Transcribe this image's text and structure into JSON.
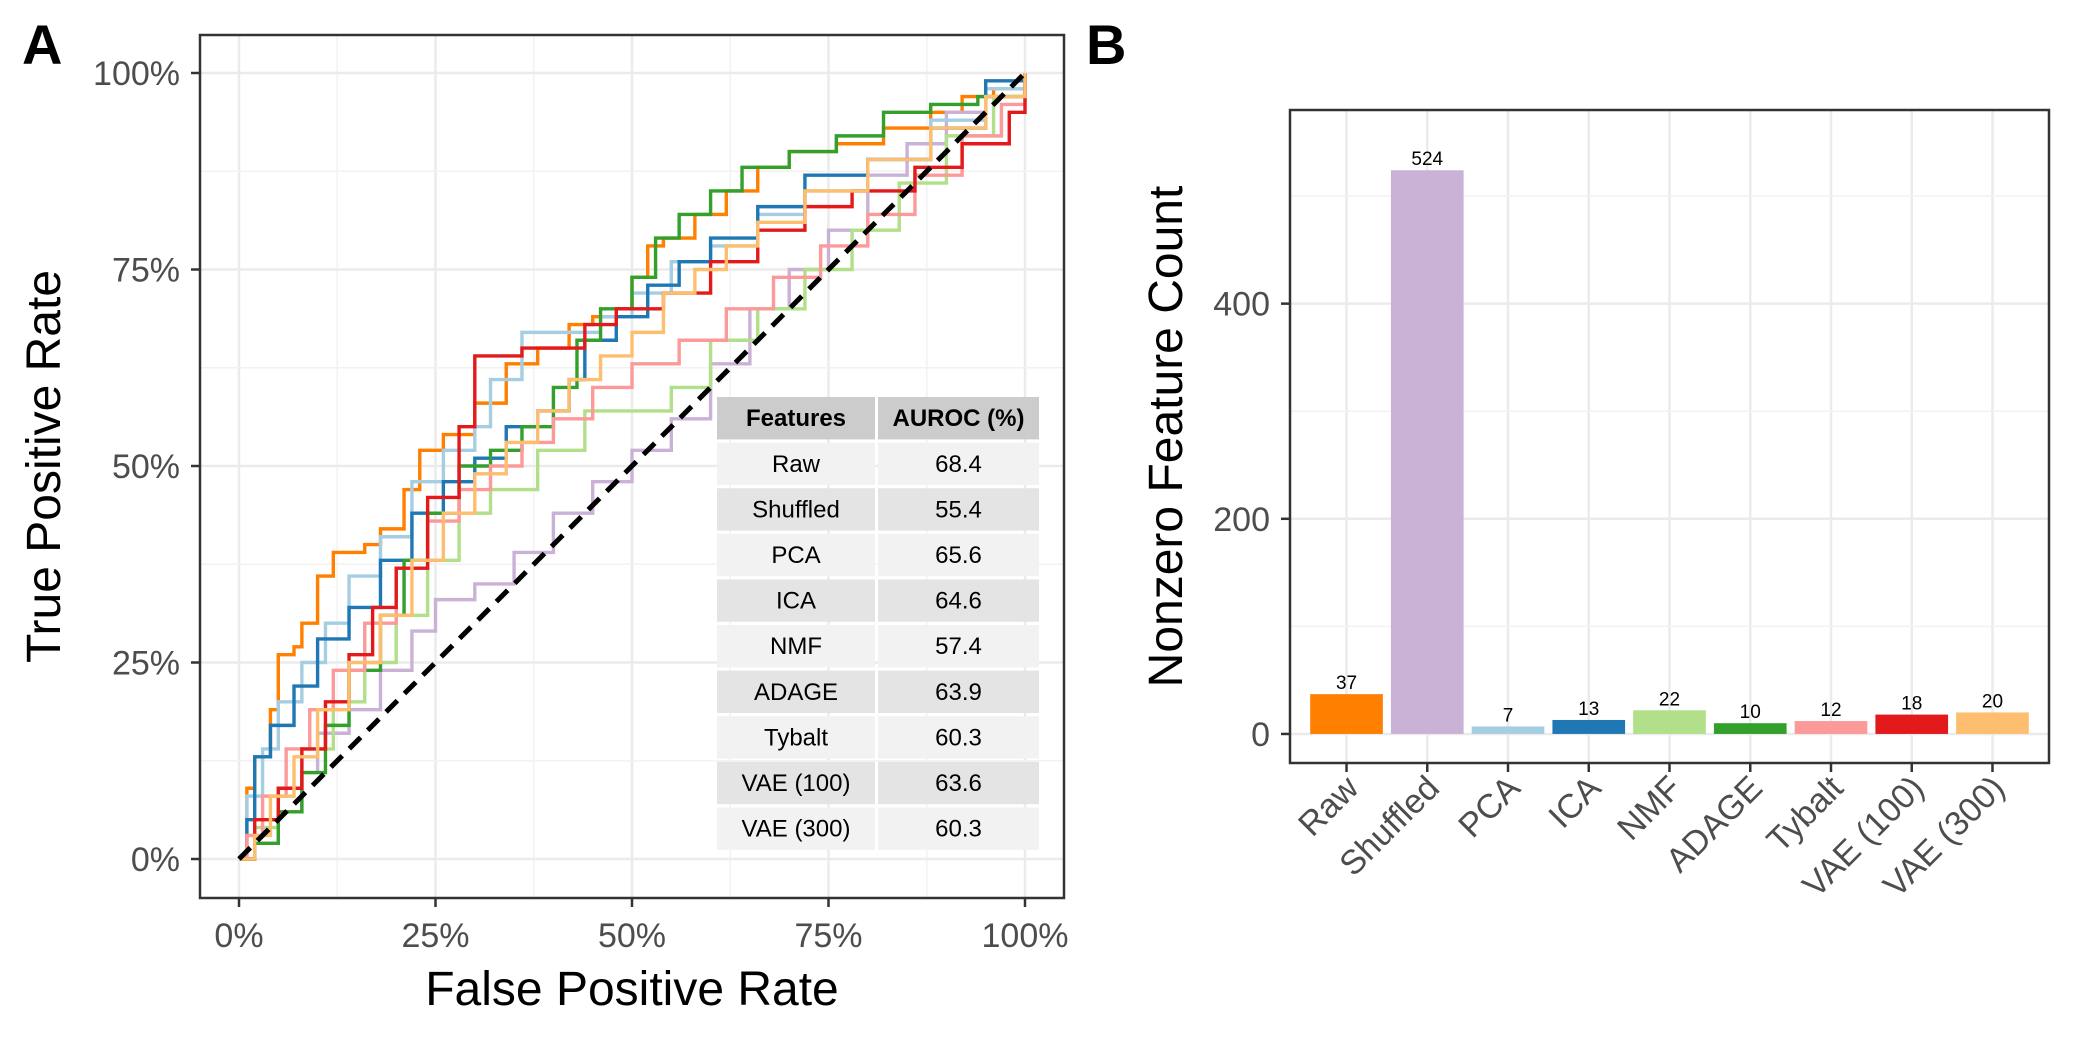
{
  "panels": {
    "a": "A",
    "b": "B"
  },
  "chart_data": [
    {
      "type": "line",
      "panel": "A",
      "xlabel": "False Positive Rate",
      "ylabel": "True Positive Rate",
      "xlim": [
        0,
        1
      ],
      "ylim": [
        0,
        1
      ],
      "x_ticks": [
        "0%",
        "25%",
        "50%",
        "75%",
        "100%"
      ],
      "y_ticks": [
        "0%",
        "25%",
        "50%",
        "75%",
        "100%"
      ],
      "grid": true,
      "reference_line": {
        "style": "dashed",
        "color": "#000000",
        "from": [
          0,
          0
        ],
        "to": [
          1,
          1
        ]
      },
      "series": [
        {
          "color": "#ff7f00",
          "points": [
            [
              0,
              0
            ],
            [
              0.01,
              0.09
            ],
            [
              0.02,
              0.13
            ],
            [
              0.04,
              0.19
            ],
            [
              0.05,
              0.26
            ],
            [
              0.07,
              0.27
            ],
            [
              0.08,
              0.3
            ],
            [
              0.1,
              0.36
            ],
            [
              0.12,
              0.39
            ],
            [
              0.16,
              0.4
            ],
            [
              0.18,
              0.42
            ],
            [
              0.21,
              0.47
            ],
            [
              0.23,
              0.52
            ],
            [
              0.26,
              0.54
            ],
            [
              0.3,
              0.58
            ],
            [
              0.34,
              0.63
            ],
            [
              0.38,
              0.65
            ],
            [
              0.42,
              0.68
            ],
            [
              0.45,
              0.69
            ],
            [
              0.48,
              0.7
            ],
            [
              0.5,
              0.74
            ],
            [
              0.52,
              0.78
            ],
            [
              0.54,
              0.79
            ],
            [
              0.58,
              0.82
            ],
            [
              0.62,
              0.85
            ],
            [
              0.66,
              0.88
            ],
            [
              0.7,
              0.9
            ],
            [
              0.76,
              0.91
            ],
            [
              0.82,
              0.93
            ],
            [
              0.88,
              0.95
            ],
            [
              0.92,
              0.97
            ],
            [
              0.96,
              0.98
            ],
            [
              1,
              1
            ]
          ]
        },
        {
          "color": "#cab2d6",
          "points": [
            [
              0,
              0
            ],
            [
              0.02,
              0.02
            ],
            [
              0.05,
              0.06
            ],
            [
              0.08,
              0.11
            ],
            [
              0.1,
              0.16
            ],
            [
              0.14,
              0.19
            ],
            [
              0.18,
              0.24
            ],
            [
              0.22,
              0.29
            ],
            [
              0.25,
              0.33
            ],
            [
              0.3,
              0.35
            ],
            [
              0.35,
              0.39
            ],
            [
              0.4,
              0.44
            ],
            [
              0.45,
              0.48
            ],
            [
              0.5,
              0.52
            ],
            [
              0.55,
              0.56
            ],
            [
              0.6,
              0.63
            ],
            [
              0.65,
              0.7
            ],
            [
              0.7,
              0.75
            ],
            [
              0.75,
              0.8
            ],
            [
              0.8,
              0.87
            ],
            [
              0.85,
              0.91
            ],
            [
              0.9,
              0.95
            ],
            [
              0.95,
              0.97
            ],
            [
              1,
              1
            ]
          ]
        },
        {
          "color": "#a6cee3",
          "points": [
            [
              0,
              0
            ],
            [
              0.01,
              0.08
            ],
            [
              0.03,
              0.14
            ],
            [
              0.05,
              0.2
            ],
            [
              0.08,
              0.25
            ],
            [
              0.11,
              0.3
            ],
            [
              0.14,
              0.36
            ],
            [
              0.18,
              0.41
            ],
            [
              0.22,
              0.48
            ],
            [
              0.26,
              0.52
            ],
            [
              0.3,
              0.55
            ],
            [
              0.32,
              0.61
            ],
            [
              0.36,
              0.67
            ],
            [
              0.42,
              0.67
            ],
            [
              0.46,
              0.69
            ],
            [
              0.5,
              0.72
            ],
            [
              0.55,
              0.76
            ],
            [
              0.6,
              0.78
            ],
            [
              0.66,
              0.82
            ],
            [
              0.72,
              0.85
            ],
            [
              0.8,
              0.89
            ],
            [
              0.88,
              0.94
            ],
            [
              0.95,
              0.98
            ],
            [
              1,
              1
            ]
          ]
        },
        {
          "color": "#1f78b4",
          "points": [
            [
              0,
              0
            ],
            [
              0.01,
              0.05
            ],
            [
              0.02,
              0.13
            ],
            [
              0.04,
              0.17
            ],
            [
              0.07,
              0.22
            ],
            [
              0.1,
              0.28
            ],
            [
              0.14,
              0.32
            ],
            [
              0.18,
              0.38
            ],
            [
              0.22,
              0.44
            ],
            [
              0.26,
              0.48
            ],
            [
              0.3,
              0.51
            ],
            [
              0.34,
              0.55
            ],
            [
              0.38,
              0.57
            ],
            [
              0.42,
              0.61
            ],
            [
              0.44,
              0.66
            ],
            [
              0.48,
              0.69
            ],
            [
              0.52,
              0.73
            ],
            [
              0.56,
              0.76
            ],
            [
              0.6,
              0.79
            ],
            [
              0.66,
              0.83
            ],
            [
              0.72,
              0.87
            ],
            [
              0.8,
              0.89
            ],
            [
              0.88,
              0.93
            ],
            [
              0.95,
              0.99
            ],
            [
              1,
              1
            ]
          ]
        },
        {
          "color": "#b2df8a",
          "points": [
            [
              0,
              0
            ],
            [
              0.02,
              0.04
            ],
            [
              0.05,
              0.09
            ],
            [
              0.08,
              0.14
            ],
            [
              0.12,
              0.2
            ],
            [
              0.16,
              0.25
            ],
            [
              0.2,
              0.31
            ],
            [
              0.24,
              0.38
            ],
            [
              0.28,
              0.44
            ],
            [
              0.32,
              0.47
            ],
            [
              0.38,
              0.52
            ],
            [
              0.44,
              0.57
            ],
            [
              0.5,
              0.57
            ],
            [
              0.55,
              0.6
            ],
            [
              0.6,
              0.66
            ],
            [
              0.66,
              0.7
            ],
            [
              0.72,
              0.75
            ],
            [
              0.78,
              0.8
            ],
            [
              0.84,
              0.86
            ],
            [
              0.9,
              0.92
            ],
            [
              0.96,
              0.97
            ],
            [
              1,
              1
            ]
          ]
        },
        {
          "color": "#33a02c",
          "points": [
            [
              0,
              0
            ],
            [
              0.02,
              0.02
            ],
            [
              0.05,
              0.06
            ],
            [
              0.08,
              0.11
            ],
            [
              0.11,
              0.17
            ],
            [
              0.14,
              0.24
            ],
            [
              0.18,
              0.31
            ],
            [
              0.21,
              0.38
            ],
            [
              0.24,
              0.44
            ],
            [
              0.28,
              0.5
            ],
            [
              0.32,
              0.52
            ],
            [
              0.36,
              0.55
            ],
            [
              0.4,
              0.6
            ],
            [
              0.43,
              0.66
            ],
            [
              0.46,
              0.7
            ],
            [
              0.5,
              0.74
            ],
            [
              0.53,
              0.79
            ],
            [
              0.56,
              0.82
            ],
            [
              0.6,
              0.85
            ],
            [
              0.64,
              0.88
            ],
            [
              0.7,
              0.9
            ],
            [
              0.76,
              0.92
            ],
            [
              0.82,
              0.95
            ],
            [
              0.88,
              0.96
            ],
            [
              0.94,
              0.97
            ],
            [
              1,
              1
            ]
          ]
        },
        {
          "color": "#fb9a99",
          "points": [
            [
              0,
              0
            ],
            [
              0.01,
              0.03
            ],
            [
              0.03,
              0.08
            ],
            [
              0.06,
              0.14
            ],
            [
              0.09,
              0.19
            ],
            [
              0.12,
              0.24
            ],
            [
              0.16,
              0.3
            ],
            [
              0.2,
              0.37
            ],
            [
              0.24,
              0.43
            ],
            [
              0.28,
              0.47
            ],
            [
              0.32,
              0.5
            ],
            [
              0.36,
              0.53
            ],
            [
              0.4,
              0.56
            ],
            [
              0.45,
              0.6
            ],
            [
              0.5,
              0.63
            ],
            [
              0.56,
              0.66
            ],
            [
              0.62,
              0.7
            ],
            [
              0.68,
              0.74
            ],
            [
              0.74,
              0.78
            ],
            [
              0.8,
              0.82
            ],
            [
              0.86,
              0.87
            ],
            [
              0.92,
              0.92
            ],
            [
              0.97,
              0.96
            ],
            [
              1,
              1
            ]
          ]
        },
        {
          "color": "#e31a1c",
          "points": [
            [
              0,
              0
            ],
            [
              0.02,
              0.05
            ],
            [
              0.05,
              0.09
            ],
            [
              0.08,
              0.14
            ],
            [
              0.11,
              0.2
            ],
            [
              0.14,
              0.26
            ],
            [
              0.17,
              0.32
            ],
            [
              0.2,
              0.37
            ],
            [
              0.24,
              0.46
            ],
            [
              0.28,
              0.55
            ],
            [
              0.3,
              0.64
            ],
            [
              0.36,
              0.65
            ],
            [
              0.44,
              0.68
            ],
            [
              0.48,
              0.7
            ],
            [
              0.54,
              0.72
            ],
            [
              0.6,
              0.76
            ],
            [
              0.66,
              0.8
            ],
            [
              0.72,
              0.83
            ],
            [
              0.78,
              0.85
            ],
            [
              0.86,
              0.88
            ],
            [
              0.92,
              0.91
            ],
            [
              0.98,
              0.95
            ],
            [
              1,
              1
            ]
          ]
        },
        {
          "color": "#fdbf6f",
          "points": [
            [
              0,
              0
            ],
            [
              0.02,
              0.03
            ],
            [
              0.04,
              0.08
            ],
            [
              0.07,
              0.13
            ],
            [
              0.1,
              0.19
            ],
            [
              0.14,
              0.25
            ],
            [
              0.18,
              0.31
            ],
            [
              0.22,
              0.38
            ],
            [
              0.26,
              0.44
            ],
            [
              0.3,
              0.49
            ],
            [
              0.34,
              0.53
            ],
            [
              0.38,
              0.57
            ],
            [
              0.42,
              0.61
            ],
            [
              0.46,
              0.64
            ],
            [
              0.5,
              0.67
            ],
            [
              0.54,
              0.72
            ],
            [
              0.58,
              0.75
            ],
            [
              0.62,
              0.78
            ],
            [
              0.66,
              0.81
            ],
            [
              0.72,
              0.85
            ],
            [
              0.8,
              0.89
            ],
            [
              0.88,
              0.93
            ],
            [
              0.95,
              0.97
            ],
            [
              1,
              1
            ]
          ]
        }
      ],
      "table": {
        "headers": [
          "Features",
          "AUROC (%)"
        ],
        "rows": [
          [
            "Raw",
            "68.4"
          ],
          [
            "Shuffled",
            "55.4"
          ],
          [
            "PCA",
            "65.6"
          ],
          [
            "ICA",
            "64.6"
          ],
          [
            "NMF",
            "57.4"
          ],
          [
            "ADAGE",
            "63.9"
          ],
          [
            "Tybalt",
            "60.3"
          ],
          [
            "VAE (100)",
            "63.6"
          ],
          [
            "VAE (300)",
            "60.3"
          ]
        ]
      }
    },
    {
      "type": "bar",
      "panel": "B",
      "xlabel": "",
      "ylabel": "Nonzero Feature Count",
      "ylim": [
        -27,
        580
      ],
      "y_ticks": [
        0,
        200,
        400
      ],
      "grid": true,
      "categories": [
        "Raw",
        "Shuffled",
        "PCA",
        "ICA",
        "NMF",
        "ADAGE",
        "Tybalt",
        "VAE (100)",
        "VAE (300)"
      ],
      "values": [
        37,
        524,
        7,
        13,
        22,
        10,
        12,
        18,
        20
      ],
      "colors": [
        "#ff7f00",
        "#cab2d6",
        "#a6cee3",
        "#1f78b4",
        "#b2df8a",
        "#33a02c",
        "#fb9a99",
        "#e31a1c",
        "#fdbf6f"
      ]
    }
  ]
}
